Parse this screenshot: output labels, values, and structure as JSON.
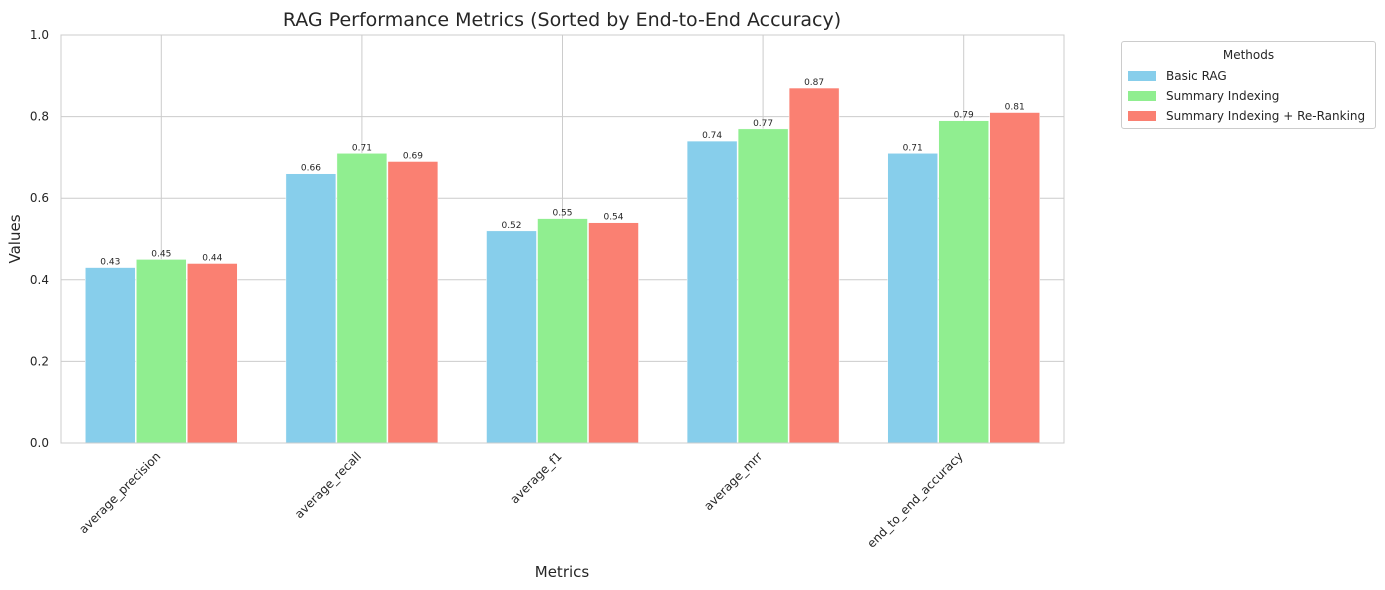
{
  "chart_data": {
    "type": "bar",
    "title": "RAG Performance Metrics (Sorted by End-to-End Accuracy)",
    "xlabel": "Metrics",
    "ylabel": "Values",
    "ylim": [
      0,
      1.0
    ],
    "yticks": [
      "0.0",
      "0.2",
      "0.4",
      "0.6",
      "0.8",
      "1.0"
    ],
    "grid": true,
    "categories": [
      "average_precision",
      "average_recall",
      "average_f1",
      "average_mrr",
      "end_to_end_accuracy"
    ],
    "series": [
      {
        "name": "Basic RAG",
        "color": "#87ceeb",
        "values": [
          0.43,
          0.66,
          0.52,
          0.74,
          0.71
        ],
        "labels": [
          "0.43",
          "0.66",
          "0.52",
          "0.74",
          "0.71"
        ]
      },
      {
        "name": "Summary Indexing",
        "color": "#90ee90",
        "values": [
          0.45,
          0.71,
          0.55,
          0.77,
          0.79
        ],
        "labels": [
          "0.45",
          "0.71",
          "0.55",
          "0.77",
          "0.79"
        ]
      },
      {
        "name": "Summary Indexing + Re-Ranking",
        "color": "#fa8072",
        "values": [
          0.44,
          0.69,
          0.54,
          0.87,
          0.81
        ],
        "labels": [
          "0.44",
          "0.69",
          "0.54",
          "0.87",
          "0.81"
        ]
      }
    ],
    "legend": {
      "title": "Methods",
      "placement": "outside-top-right"
    }
  }
}
